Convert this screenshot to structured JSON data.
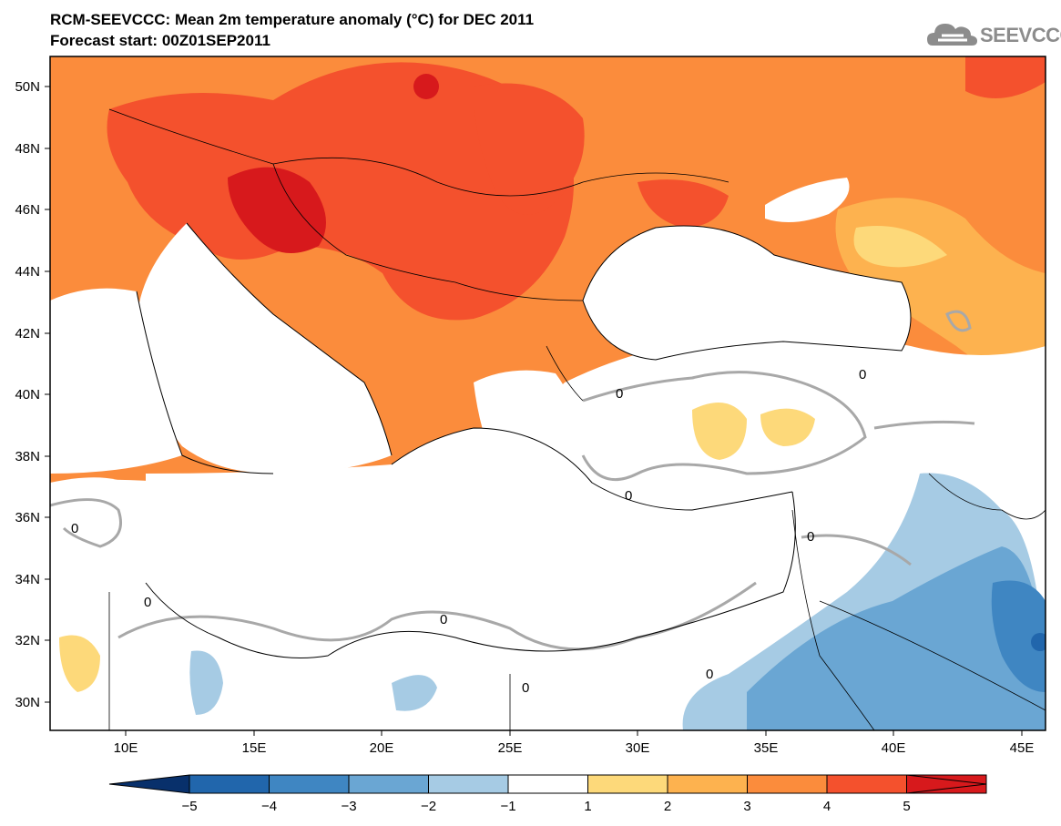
{
  "header": {
    "title": "RCM-SEEVCCC: Mean 2m temperature anomaly (°C) for DEC 2011",
    "subtitle": "Forecast start: 00Z01SEP2011"
  },
  "logo": {
    "text": "SEEVCCC",
    "icon": "cloud-icon"
  },
  "map": {
    "lat_labels": [
      "50N",
      "48N",
      "46N",
      "44N",
      "42N",
      "40N",
      "38N",
      "36N",
      "34N",
      "32N",
      "30N"
    ],
    "lon_labels": [
      "10E",
      "15E",
      "20E",
      "25E",
      "30E",
      "35E",
      "40E",
      "45E"
    ],
    "contour_label": "0"
  },
  "colorbar": {
    "labels": [
      "−5",
      "−4",
      "−3",
      "−2",
      "−1",
      "1",
      "2",
      "3",
      "4",
      "5"
    ],
    "colors": [
      "#2166ac",
      "#3f86c2",
      "#6aa6d3",
      "#a6cbe4",
      "#ffffff",
      "#fdd97a",
      "#fdb24f",
      "#fb8c3c",
      "#f4512d",
      "#d7191c"
    ],
    "under_color": "#08306b",
    "over_color": "#d7191c"
  }
}
